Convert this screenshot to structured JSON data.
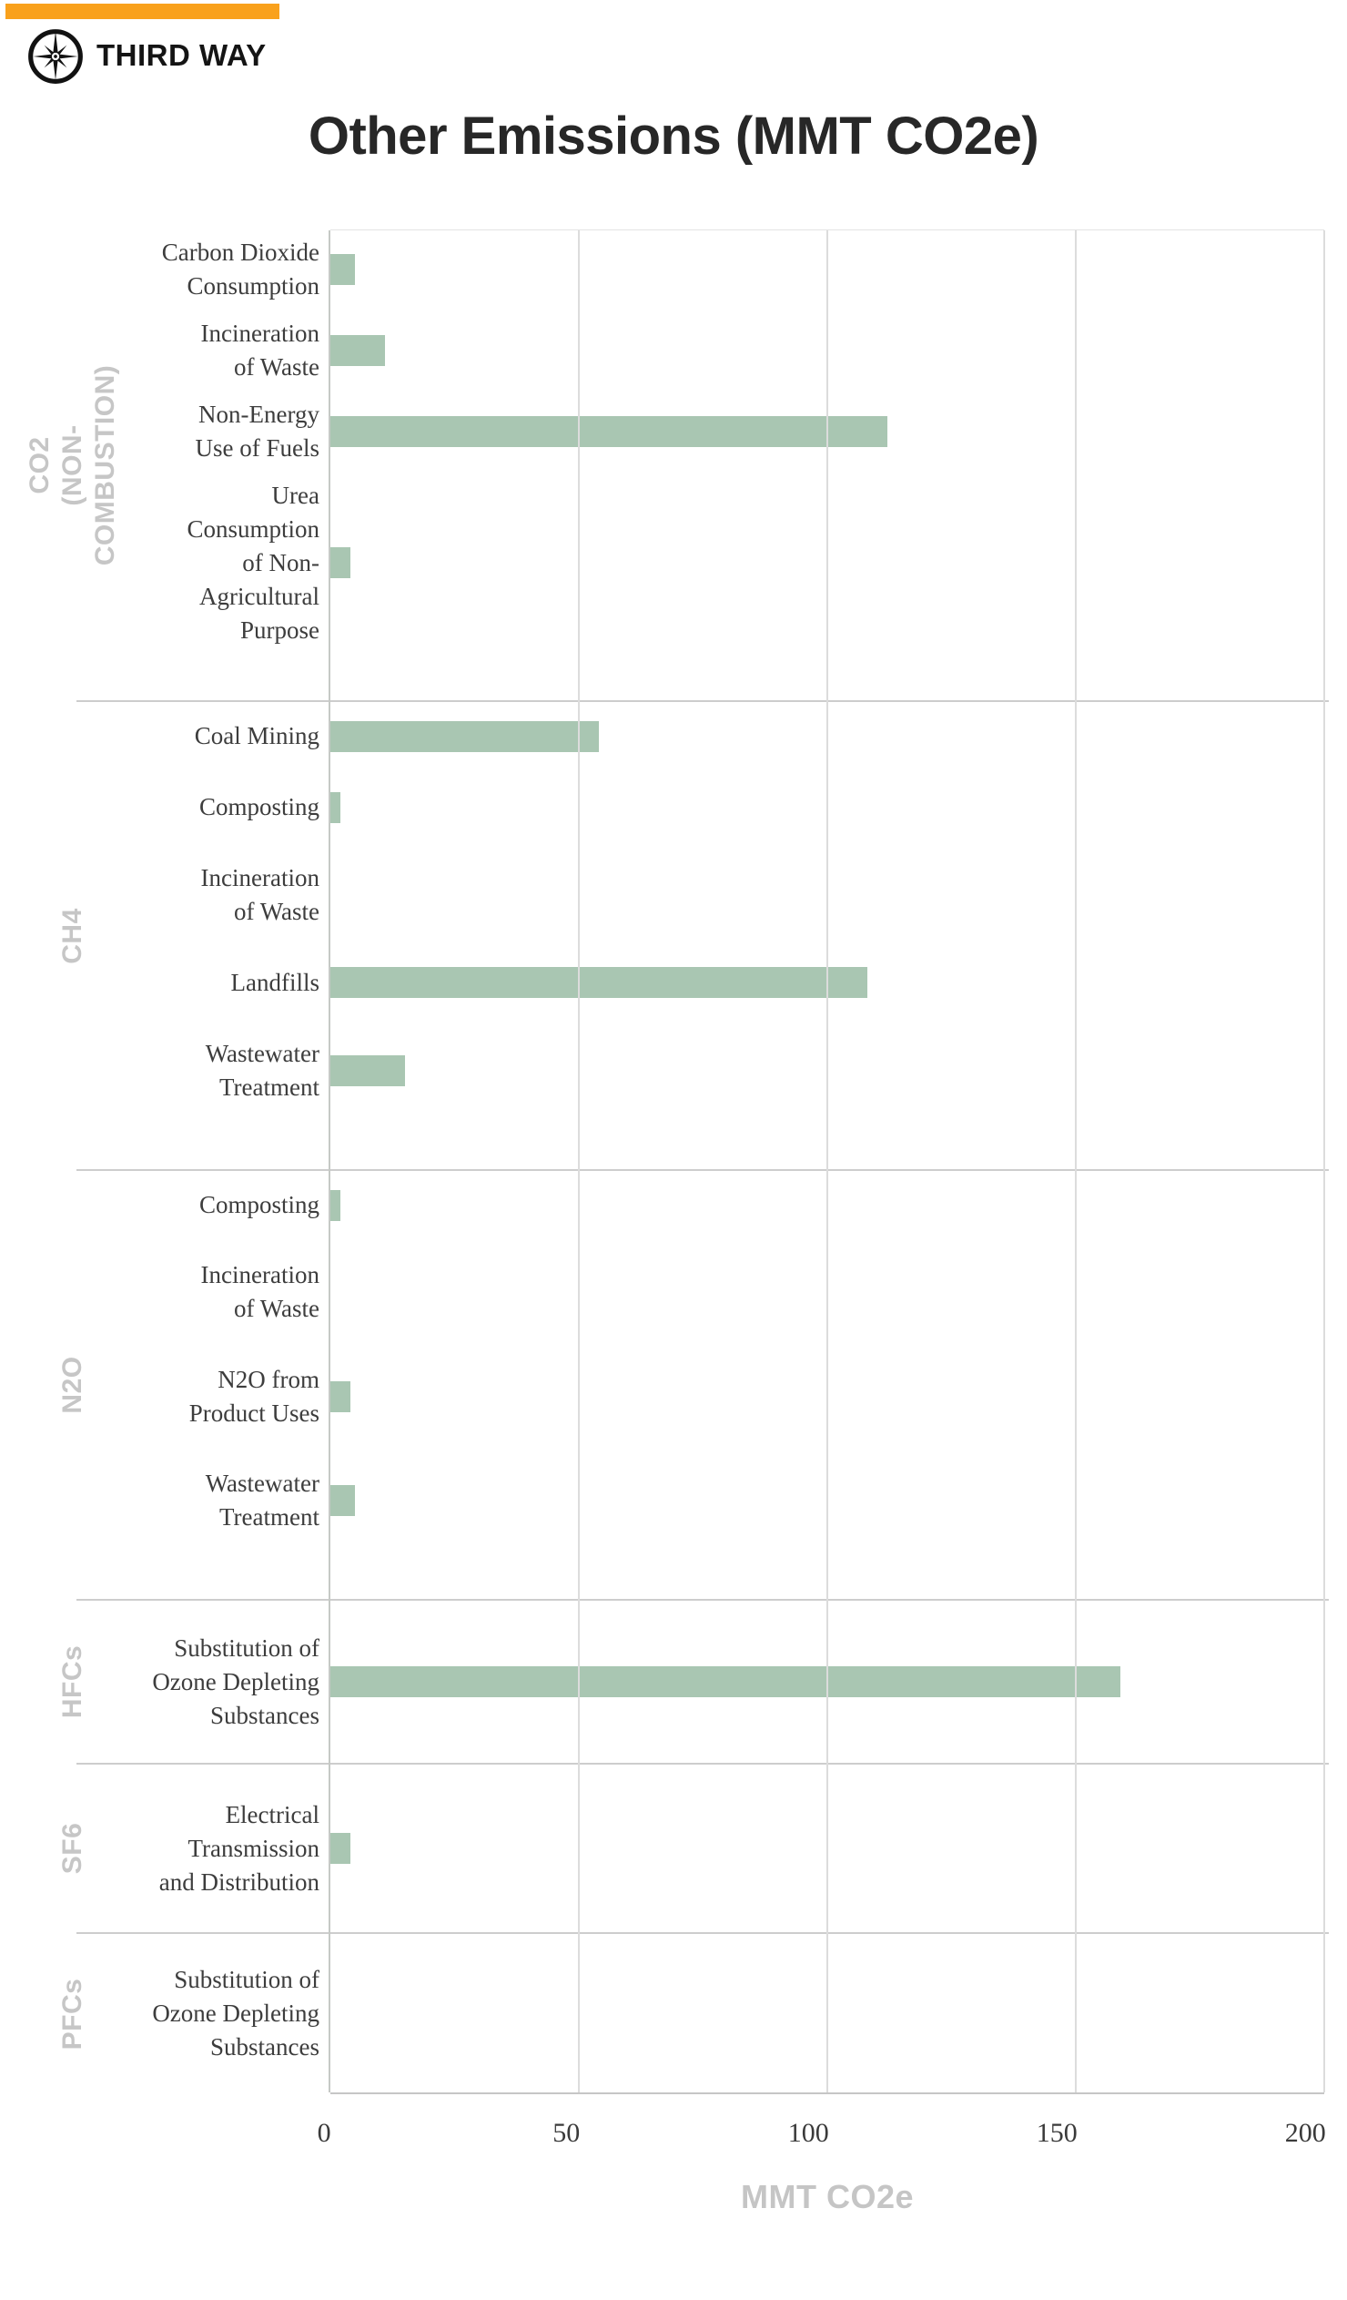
{
  "brand": {
    "name": "THIRD WAY",
    "accent_color": "#F9A11C",
    "logo_icon": "compass-star-icon"
  },
  "title": "Other Emissions (MMT CO2e)",
  "chart_data": {
    "type": "bar",
    "orientation": "horizontal",
    "title": "Other Emissions (MMT CO2e)",
    "xlabel": "MMT CO2e",
    "xlim": [
      0,
      200
    ],
    "x_ticks": [
      0,
      50,
      100,
      150,
      200
    ],
    "grid": true,
    "legend_position": "none",
    "bar_color": "#A9C6B2",
    "axis_color": "#c6c9c6",
    "gridline_color": "#dcdcdc",
    "groups": [
      {
        "gas": "CO2\n(NON-COMBUSTION)",
        "items": [
          {
            "label": "Carbon Dioxide\nConsumption",
            "value": 5
          },
          {
            "label": "Incineration\nof Waste",
            "value": 11
          },
          {
            "label": "Non-Energy\nUse of Fuels",
            "value": 112
          },
          {
            "label": "Urea Consumption\nof Non-Agricultural\nPurpose",
            "value": 4
          }
        ]
      },
      {
        "gas": "CH4",
        "items": [
          {
            "label": "Coal Mining",
            "value": 54
          },
          {
            "label": "Composting",
            "value": 2
          },
          {
            "label": "Incineration\nof Waste",
            "value": 0
          },
          {
            "label": "Landfills",
            "value": 108
          },
          {
            "label": "Wastewater\nTreatment",
            "value": 15
          }
        ]
      },
      {
        "gas": "N2O",
        "items": [
          {
            "label": "Composting",
            "value": 2
          },
          {
            "label": "Incineration\nof Waste",
            "value": 0
          },
          {
            "label": "N2O from\nProduct Uses",
            "value": 4
          },
          {
            "label": "Wastewater\nTreatment",
            "value": 5
          }
        ]
      },
      {
        "gas": "HFCs",
        "items": [
          {
            "label": "Substitution of\nOzone Depleting\nSubstances",
            "value": 159
          }
        ]
      },
      {
        "gas": "SF6",
        "items": [
          {
            "label": "Electrical\nTransmission\nand Distribution",
            "value": 4
          }
        ]
      },
      {
        "gas": "PFCs",
        "items": [
          {
            "label": "Substitution of\nOzone Depleting\nSubstances",
            "value": 0
          }
        ]
      }
    ]
  }
}
